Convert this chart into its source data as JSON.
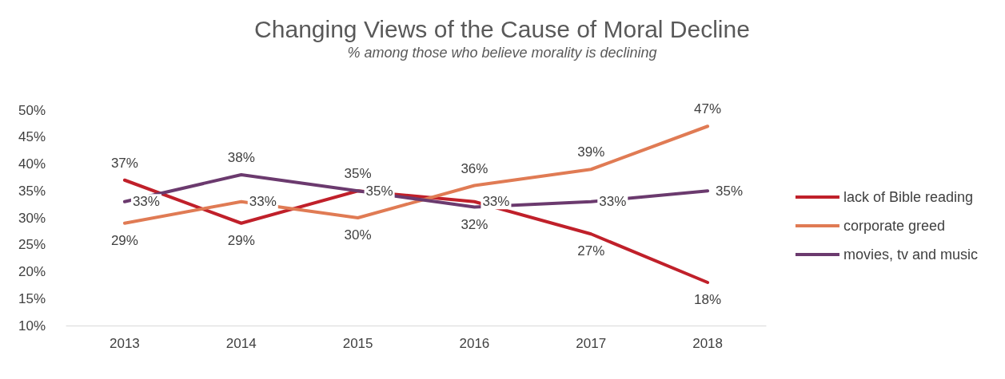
{
  "chart_data": {
    "type": "line",
    "title": "Changing Views of the Cause of Moral Decline",
    "subtitle": "% among those who believe morality is declining",
    "categories": [
      "2013",
      "2014",
      "2015",
      "2016",
      "2017",
      "2018"
    ],
    "series": [
      {
        "name": "lack of Bible reading",
        "color": "#c0202a",
        "values": [
          37,
          29,
          35,
          33,
          27,
          18
        ],
        "value_labels": [
          "37%",
          "29%",
          "35%",
          "33%",
          "27%",
          "18%"
        ]
      },
      {
        "name": "corporate greed",
        "color": "#e07b54",
        "values": [
          29,
          33,
          30,
          36,
          39,
          47
        ],
        "value_labels": [
          "29%",
          "33%",
          "30%",
          "36%",
          "39%",
          "47%"
        ]
      },
      {
        "name": "movies, tv and music",
        "color": "#6b3a6e",
        "values": [
          33,
          38,
          35,
          32,
          33,
          35
        ],
        "value_labels": [
          "33%",
          "38%",
          "35%",
          "32%",
          "33%",
          "35%"
        ]
      }
    ],
    "ylim": [
      10,
      50
    ],
    "yticks": [
      {
        "value": 10,
        "label": "10%"
      },
      {
        "value": 15,
        "label": "15%"
      },
      {
        "value": 20,
        "label": "20%"
      },
      {
        "value": 25,
        "label": "25%"
      },
      {
        "value": 30,
        "label": "30%"
      },
      {
        "value": 35,
        "label": "35%"
      },
      {
        "value": 40,
        "label": "40%"
      },
      {
        "value": 45,
        "label": "45%"
      },
      {
        "value": 50,
        "label": "50%"
      }
    ],
    "grid": false,
    "legend": "right",
    "marker": "none"
  }
}
